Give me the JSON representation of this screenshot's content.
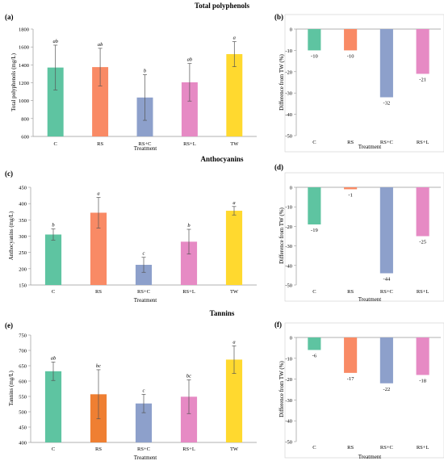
{
  "sections": [
    {
      "title": "Total polyphenols"
    },
    {
      "title": "Anthocyanins"
    },
    {
      "title": "Tannins"
    }
  ],
  "colors": {
    "C": "#5ec4a1",
    "RS": "#f98a65",
    "RS_tannins": "#ef7f32",
    "RS+C": "#8da0cb",
    "RS+L": "#e68ac4",
    "TW": "#ffd92f",
    "axis": "#999999",
    "error": "#555555"
  },
  "chart_data": [
    {
      "panel": "(a)",
      "type": "bar",
      "categories": [
        "C",
        "RS",
        "RS+C",
        "RS+L",
        "TW"
      ],
      "values": [
        1370,
        1375,
        1035,
        1205,
        1520
      ],
      "errors": [
        250,
        210,
        255,
        210,
        140
      ],
      "letters": [
        "ab",
        "ab",
        "b",
        "ab",
        "a"
      ],
      "xlabel": "Treatment",
      "ylabel": "Total polyphenols (mg/L)",
      "ylim": [
        600,
        1800
      ],
      "yticks": [
        600,
        800,
        1000,
        1200,
        1400,
        1600,
        1800
      ]
    },
    {
      "panel": "(b)",
      "type": "bar",
      "categories": [
        "C",
        "RS",
        "RS+C",
        "RS+L"
      ],
      "values": [
        -10,
        -10,
        -32,
        -21
      ],
      "value_labels": [
        "-10",
        "-10",
        "-32",
        "-21"
      ],
      "xlabel": "Treatment",
      "ylabel": "Difference from TW (%)",
      "ylim": [
        -50,
        0
      ],
      "yticks": [
        0,
        -10,
        -20,
        -30,
        -40,
        -50
      ]
    },
    {
      "panel": "(c)",
      "type": "bar",
      "categories": [
        "C",
        "RS",
        "RS+C",
        "RS+L",
        "TW"
      ],
      "values": [
        305,
        372,
        212,
        283,
        378
      ],
      "errors": [
        17,
        47,
        23,
        38,
        13
      ],
      "letters": [
        "b",
        "a",
        "c",
        "b",
        "a"
      ],
      "xlabel": "Treatment",
      "ylabel": "Anthocyanins (mg/L)",
      "ylim": [
        150,
        450
      ],
      "yticks": [
        150,
        200,
        250,
        300,
        350,
        400,
        450
      ]
    },
    {
      "panel": "(d)",
      "type": "bar",
      "categories": [
        "C",
        "RS",
        "RS+C",
        "RS+L"
      ],
      "values": [
        -19,
        -1,
        -44,
        -25
      ],
      "value_labels": [
        "-19",
        "-1",
        "-44",
        "-25"
      ],
      "xlabel": "Treatment",
      "ylabel": "Difference from TW (%)",
      "ylim": [
        -50,
        0
      ],
      "yticks": [
        0,
        -10,
        -20,
        -30,
        -40,
        -50
      ]
    },
    {
      "panel": "(e)",
      "type": "bar",
      "categories": [
        "C",
        "RS",
        "RS+C",
        "RS+L",
        "TW"
      ],
      "values": [
        632,
        557,
        527,
        549,
        670
      ],
      "errors": [
        30,
        80,
        30,
        55,
        45
      ],
      "letters": [
        "ab",
        "bc",
        "c",
        "bc",
        "a"
      ],
      "xlabel": "Treatment",
      "ylabel": "Tannins (mg/L)",
      "ylim": [
        400,
        750
      ],
      "yticks": [
        400,
        450,
        500,
        550,
        600,
        650,
        700,
        750
      ]
    },
    {
      "panel": "(f)",
      "type": "bar",
      "categories": [
        "C",
        "RS",
        "RS+C",
        "RS+L"
      ],
      "values": [
        -6,
        -17,
        -22,
        -18
      ],
      "value_labels": [
        "-6",
        "-17",
        "-22",
        "-18"
      ],
      "xlabel": "Treatment",
      "ylabel": "Difference from TW (%)",
      "ylim": [
        -50,
        0
      ],
      "yticks": [
        0,
        -10,
        -20,
        -30,
        -40,
        -50
      ]
    }
  ]
}
